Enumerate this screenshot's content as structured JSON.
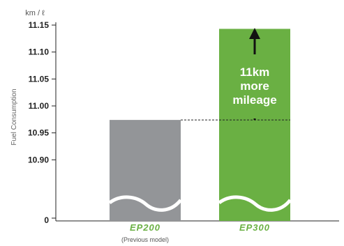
{
  "chart_data": {
    "type": "bar",
    "unit": "km / ℓ",
    "ylabel": "Fuel Consumption",
    "ylim": [
      10.85,
      11.15
    ],
    "axis_break": true,
    "ticks": [
      {
        "value": 11.15,
        "label": "11.15"
      },
      {
        "value": 11.1,
        "label": "11.10"
      },
      {
        "value": 11.05,
        "label": "11.05"
      },
      {
        "value": 11.0,
        "label": "11.00"
      },
      {
        "value": 10.95,
        "label": "10.95"
      },
      {
        "value": 10.9,
        "label": "10.90"
      }
    ],
    "zero_label": "0",
    "categories": [
      {
        "name": "EP200",
        "sublabel": "(Previous model)",
        "value": 10.974,
        "color": "#939598"
      },
      {
        "name": "EP300",
        "sublabel": "",
        "value": 11.143,
        "color": "#6ab043"
      }
    ],
    "annotation": {
      "lines": [
        "11km",
        "more",
        "mileage"
      ],
      "style": "arrow-up"
    },
    "reference_line": "dashed",
    "grid": false,
    "colors": {
      "accent": "#6ab043",
      "previous": "#939598",
      "axis": "#222222"
    }
  }
}
